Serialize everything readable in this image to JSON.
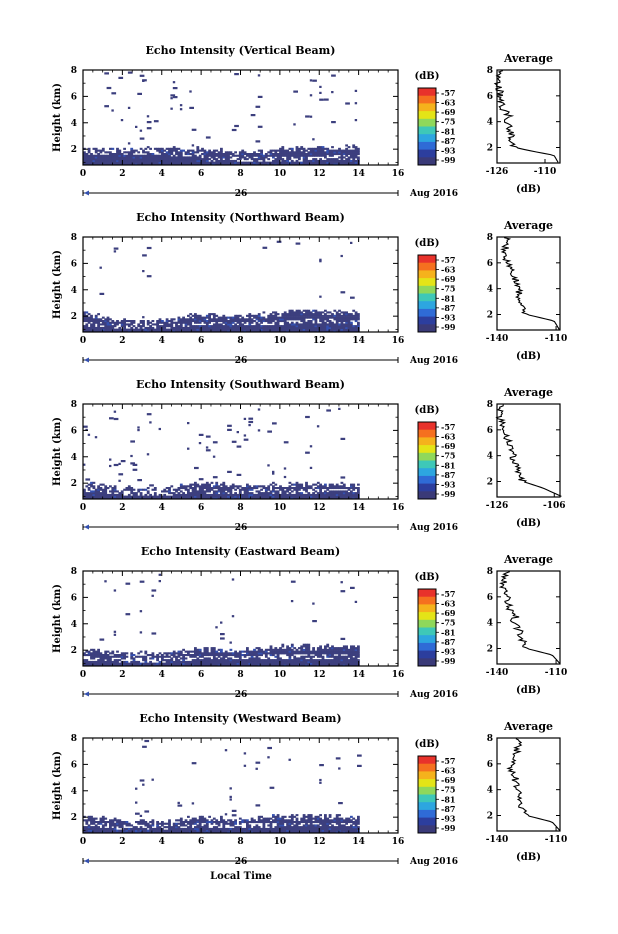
{
  "figure": {
    "x_axis_label": "Local Time",
    "day_label": "26",
    "date_label": "Aug 2016",
    "y_axis_label": "Height (km)",
    "colorbar_unit": "(dB)",
    "colorbar_ticks": [
      "-57",
      "-63",
      "-69",
      "-75",
      "-81",
      "-87",
      "-93",
      "-99"
    ],
    "colorbar_colors": [
      "#e8322b",
      "#f5701f",
      "#f5b21c",
      "#e4e417",
      "#8fd85b",
      "#3ec8b8",
      "#2da6e0",
      "#2f6bd6",
      "#2c3e9e",
      "#3a3a78"
    ],
    "echo_color": "#3c3f7e",
    "echo_color_alt": "#3450b0",
    "avg_title": "Average",
    "avg_xlabel": "(dB)"
  },
  "chart_data": [
    {
      "type": "heatmap",
      "title": "Echo Intensity (Vertical Beam)",
      "xlim": [
        0,
        16
      ],
      "ylim": [
        0.8,
        8
      ],
      "xticks": [
        "0",
        "2",
        "4",
        "6",
        "8",
        "10",
        "12",
        "14",
        "16"
      ],
      "yticks": [
        "2",
        "4",
        "6",
        "8"
      ],
      "band": [
        [
          0,
          2.0,
          1.5
        ],
        [
          2,
          2.0,
          1.5
        ],
        [
          4,
          2.0,
          1.5
        ],
        [
          5.7,
          2.1,
          1.3
        ],
        [
          6.5,
          1.9,
          1.0
        ],
        [
          8,
          1.8,
          1.0
        ],
        [
          10,
          2.0,
          1.0
        ],
        [
          12,
          2.1,
          1.1
        ],
        [
          14,
          2.2,
          1.2
        ]
      ],
      "avg": {
        "title": "Average",
        "xlim": [
          -126,
          -105
        ],
        "xticks": [
          "-126",
          "-110"
        ],
        "profile": [
          [
            1.0,
            -106
          ],
          [
            1.4,
            -107
          ],
          [
            1.7,
            -114
          ],
          [
            2.0,
            -120
          ],
          [
            2.5,
            -121
          ],
          [
            3.0,
            -121.5
          ],
          [
            3.5,
            -122
          ],
          [
            4.0,
            -123
          ],
          [
            4.5,
            -122
          ],
          [
            5.0,
            -124
          ],
          [
            6.0,
            -125
          ],
          [
            7.0,
            -125.5
          ],
          [
            8.0,
            -125
          ]
        ]
      }
    },
    {
      "type": "heatmap",
      "title": "Echo Intensity (Northward Beam)",
      "xlim": [
        0,
        16
      ],
      "ylim": [
        0.8,
        8
      ],
      "xticks": [
        "0",
        "2",
        "4",
        "6",
        "8",
        "10",
        "12",
        "14",
        "16"
      ],
      "yticks": [
        "2",
        "4",
        "6",
        "8"
      ],
      "band": [
        [
          0,
          2.2,
          1.2
        ],
        [
          2,
          1.7,
          1.0
        ],
        [
          4,
          1.6,
          1.0
        ],
        [
          5.7,
          2.1,
          1.2
        ],
        [
          8,
          2.0,
          1.2
        ],
        [
          10,
          2.3,
          1.3
        ],
        [
          12,
          2.4,
          1.4
        ],
        [
          14,
          2.3,
          1.3
        ]
      ],
      "avg": {
        "title": "Average",
        "xlim": [
          -140,
          -108
        ],
        "xticks": [
          "-140",
          "-110"
        ],
        "profile": [
          [
            1.0,
            -109
          ],
          [
            1.5,
            -111
          ],
          [
            2.0,
            -125
          ],
          [
            2.5,
            -127
          ],
          [
            3.0,
            -128
          ],
          [
            4.0,
            -129
          ],
          [
            4.5,
            -130
          ],
          [
            5.0,
            -132
          ],
          [
            5.5,
            -131
          ],
          [
            6.0,
            -135
          ],
          [
            7.0,
            -136
          ],
          [
            8.0,
            -135
          ]
        ]
      }
    },
    {
      "type": "heatmap",
      "title": "Echo Intensity (Southward Beam)",
      "xlim": [
        0,
        16
      ],
      "ylim": [
        0.8,
        8
      ],
      "xticks": [
        "0",
        "2",
        "4",
        "6",
        "8",
        "10",
        "12",
        "14",
        "16"
      ],
      "yticks": [
        "2",
        "4",
        "6",
        "8"
      ],
      "band": [
        [
          0,
          2.0,
          1.3
        ],
        [
          2,
          1.6,
          1.0
        ],
        [
          4,
          1.5,
          1.0
        ],
        [
          5.7,
          2.0,
          1.2
        ],
        [
          8,
          1.8,
          1.1
        ],
        [
          10,
          1.9,
          1.1
        ],
        [
          12,
          2.0,
          1.2
        ],
        [
          14,
          2.0,
          1.2
        ]
      ],
      "avg": {
        "title": "Average",
        "xlim": [
          -126,
          -104
        ],
        "xticks": [
          "-126",
          "-106"
        ],
        "profile": [
          [
            1.0,
            -105
          ],
          [
            1.5,
            -110
          ],
          [
            2.0,
            -117
          ],
          [
            2.5,
            -118
          ],
          [
            3.0,
            -119
          ],
          [
            3.5,
            -120
          ],
          [
            4.0,
            -120.5
          ],
          [
            4.5,
            -121
          ],
          [
            5.0,
            -122
          ],
          [
            6.0,
            -124
          ],
          [
            7.0,
            -125
          ],
          [
            8.0,
            -124
          ]
        ]
      }
    },
    {
      "type": "heatmap",
      "title": "Echo Intensity (Eastward Beam)",
      "xlim": [
        0,
        16
      ],
      "ylim": [
        0.8,
        8
      ],
      "xticks": [
        "0",
        "2",
        "4",
        "6",
        "8",
        "10",
        "12",
        "14",
        "16"
      ],
      "yticks": [
        "2",
        "4",
        "6",
        "8"
      ],
      "band": [
        [
          0,
          2.0,
          1.2
        ],
        [
          2,
          1.8,
          1.0
        ],
        [
          4,
          1.7,
          1.0
        ],
        [
          5.7,
          2.1,
          1.2
        ],
        [
          8,
          2.0,
          1.2
        ],
        [
          10,
          2.3,
          1.3
        ],
        [
          12,
          2.3,
          1.3
        ],
        [
          14,
          2.2,
          1.2
        ]
      ],
      "avg": {
        "title": "Average",
        "xlim": [
          -140,
          -108
        ],
        "xticks": [
          "-140",
          "-110"
        ],
        "profile": [
          [
            1.0,
            -109
          ],
          [
            1.5,
            -112
          ],
          [
            2.0,
            -125
          ],
          [
            2.5,
            -127
          ],
          [
            3.0,
            -128
          ],
          [
            3.5,
            -129
          ],
          [
            4.0,
            -132
          ],
          [
            4.5,
            -130
          ],
          [
            5.0,
            -134
          ],
          [
            6.0,
            -135
          ],
          [
            7.0,
            -137
          ],
          [
            8.0,
            -135
          ]
        ]
      }
    },
    {
      "type": "heatmap",
      "title": "Echo Intensity (Westward Beam)",
      "xlim": [
        0,
        16
      ],
      "ylim": [
        0.8,
        8
      ],
      "xticks": [
        "0",
        "2",
        "4",
        "6",
        "8",
        "10",
        "12",
        "14",
        "16"
      ],
      "yticks": [
        "2",
        "4",
        "6",
        "8"
      ],
      "band": [
        [
          0,
          2.0,
          1.3
        ],
        [
          2,
          1.7,
          1.0
        ],
        [
          4,
          1.6,
          1.0
        ],
        [
          5.7,
          2.0,
          1.2
        ],
        [
          8,
          1.8,
          1.1
        ],
        [
          10,
          2.1,
          1.2
        ],
        [
          12,
          2.1,
          1.2
        ],
        [
          14,
          2.0,
          1.2
        ]
      ],
      "avg": {
        "title": "Average",
        "xlim": [
          -140,
          -108
        ],
        "xticks": [
          "-140",
          "-110"
        ],
        "profile": [
          [
            1.0,
            -109
          ],
          [
            1.5,
            -112
          ],
          [
            2.0,
            -125
          ],
          [
            2.5,
            -127
          ],
          [
            3.0,
            -129
          ],
          [
            3.5,
            -128
          ],
          [
            4.0,
            -130
          ],
          [
            5.0,
            -131
          ],
          [
            5.5,
            -133
          ],
          [
            6.0,
            -132
          ],
          [
            6.5,
            -131
          ],
          [
            7.0,
            -130
          ],
          [
            8.0,
            -129
          ]
        ]
      }
    }
  ]
}
